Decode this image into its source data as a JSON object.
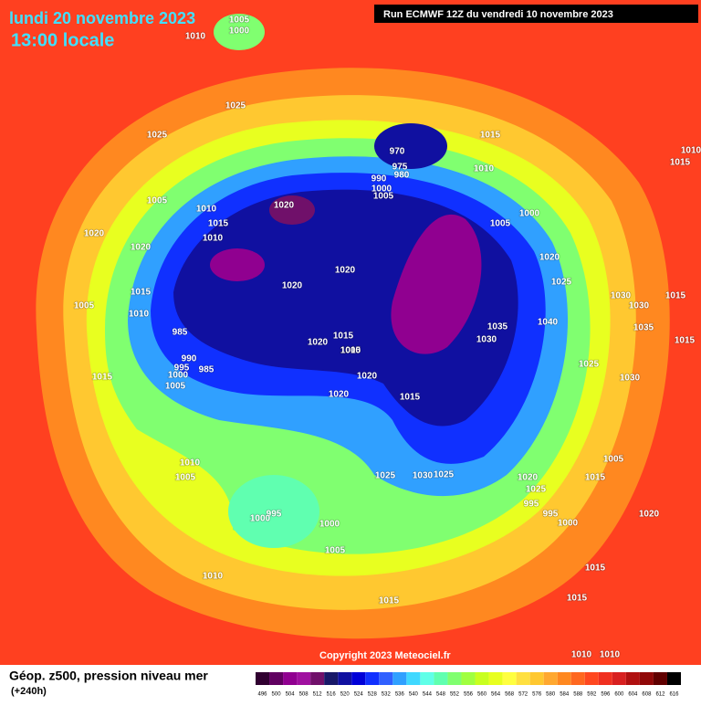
{
  "header": {
    "date": "lundi 20 novembre 2023",
    "time": "13:00 locale",
    "run": "Run ECMWF 12Z du vendredi 10 novembre 2023"
  },
  "copyright": "Copyright 2023 Meteociel.fr",
  "legend": {
    "title": "Géop. z500, pression niveau mer",
    "lead": "(+240h)",
    "values": [
      496,
      500,
      504,
      508,
      512,
      516,
      520,
      524,
      528,
      532,
      536,
      540,
      544,
      548,
      552,
      556,
      560,
      564,
      568,
      572,
      576,
      580,
      584,
      588,
      592,
      596,
      600,
      604,
      608,
      612,
      616
    ],
    "colors": [
      "#300030",
      "#600060",
      "#900090",
      "#a010a0",
      "#70106a",
      "#181868",
      "#1010a0",
      "#0000d8",
      "#1030ff",
      "#3060ff",
      "#30a0ff",
      "#40d8ff",
      "#60ffe8",
      "#60ffb0",
      "#80ff70",
      "#a0ff40",
      "#c8ff20",
      "#e8ff20",
      "#ffff40",
      "#ffe040",
      "#ffc830",
      "#ffa830",
      "#ff8820",
      "#ff6820",
      "#ff4820",
      "#f03020",
      "#d82020",
      "#b01010",
      "#900808",
      "#600000",
      "#000000"
    ]
  },
  "isobars": [
    "1005",
    "1000",
    "1010",
    "1025",
    "1025",
    "970",
    "975",
    "980",
    "990",
    "1000",
    "1005",
    "1015",
    "1010",
    "1005",
    "1000",
    "1020",
    "1025",
    "1030",
    "1030",
    "1015",
    "1035",
    "1015",
    "1040",
    "1035",
    "1030",
    "1010",
    "1015",
    "1005",
    "1010",
    "1015",
    "1010",
    "1020",
    "1020",
    "1020",
    "1015",
    "1010",
    "1005",
    "985",
    "990",
    "995",
    "1000",
    "1005",
    "985",
    "1015",
    "1020",
    "1020",
    "1020",
    "1015",
    "1025",
    "1030",
    "1020",
    "1020",
    "1015",
    "1025",
    "1030",
    "1025",
    "1010",
    "1005",
    "995",
    "1000",
    "1000",
    "1005",
    "1010",
    "1015",
    "1020",
    "1025",
    "995",
    "995",
    "1000",
    "1005",
    "1015",
    "1020",
    "1015",
    "1015",
    "1010",
    "1010",
    "1005",
    "1010"
  ]
}
